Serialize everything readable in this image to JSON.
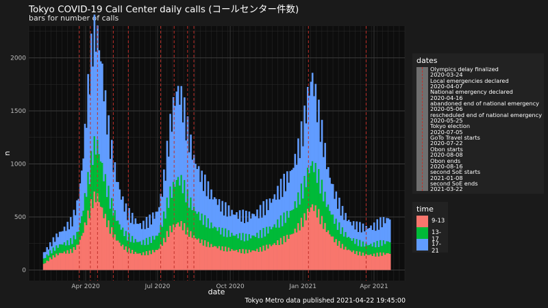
{
  "title": "Tokyo COVID-19 Call Center daily calls (コールセンター件数)",
  "subtitle": "bars for number of calls",
  "caption": "Tokyo Metro data published 2021-04-22 19:45:00",
  "colors": {
    "9-13": "#f8766d",
    "13-17": "#00ba38",
    "17-21": "#619cff",
    "event_line": "#c0302a",
    "background": "#1a1a1a",
    "grid": "#3a3a3a"
  },
  "chart_data": {
    "type": "bar",
    "stacked": true,
    "xlabel": "date",
    "ylabel": "n",
    "xlim": [
      "2020-01-20",
      "2021-05-10"
    ],
    "ylim": [
      -100,
      2300
    ],
    "x_ticks": [
      {
        "date": "2020-04-01",
        "label": "Apr 2020"
      },
      {
        "date": "2020-07-01",
        "label": "Jul 2020"
      },
      {
        "date": "2020-10-01",
        "label": "Oct 2020"
      },
      {
        "date": "2021-01-01",
        "label": "Jan 2021"
      },
      {
        "date": "2021-04-01",
        "label": "Apr 2021"
      }
    ],
    "y_ticks": [
      0,
      500,
      1000,
      1500,
      2000
    ],
    "grid": true,
    "legend_position": "right",
    "series": [
      {
        "name": "9-13",
        "x": [
          "2020-02-07",
          "2020-02-15",
          "2020-02-22",
          "2020-02-29",
          "2020-03-07",
          "2020-03-14",
          "2020-03-21",
          "2020-03-26",
          "2020-03-31",
          "2020-04-05",
          "2020-04-10",
          "2020-04-15",
          "2020-04-20",
          "2020-04-25",
          "2020-05-01",
          "2020-05-08",
          "2020-05-15",
          "2020-05-22",
          "2020-05-31",
          "2020-06-10",
          "2020-06-20",
          "2020-06-30",
          "2020-07-05",
          "2020-07-10",
          "2020-07-15",
          "2020-07-20",
          "2020-07-25",
          "2020-07-31",
          "2020-08-07",
          "2020-08-15",
          "2020-08-25",
          "2020-09-05",
          "2020-09-20",
          "2020-10-05",
          "2020-10-20",
          "2020-11-05",
          "2020-11-15",
          "2020-11-25",
          "2020-12-05",
          "2020-12-15",
          "2020-12-25",
          "2021-01-01",
          "2021-01-07",
          "2021-01-12",
          "2021-01-18",
          "2021-01-25",
          "2021-02-01",
          "2021-02-10",
          "2021-02-20",
          "2021-03-01",
          "2021-03-10",
          "2021-03-20",
          "2021-03-31",
          "2021-04-10",
          "2021-04-21"
        ],
        "values": [
          60,
          110,
          140,
          160,
          165,
          175,
          220,
          300,
          420,
          520,
          640,
          660,
          560,
          470,
          380,
          300,
          240,
          200,
          175,
          160,
          175,
          200,
          250,
          310,
          380,
          410,
          440,
          420,
          350,
          300,
          250,
          220,
          195,
          185,
          180,
          200,
          230,
          260,
          290,
          330,
          400,
          460,
          540,
          580,
          520,
          420,
          340,
          260,
          210,
          180,
          160,
          150,
          150,
          160,
          170
        ]
      },
      {
        "name": "13-17",
        "x": [
          "2020-02-07",
          "2020-02-15",
          "2020-02-22",
          "2020-02-29",
          "2020-03-07",
          "2020-03-14",
          "2020-03-21",
          "2020-03-26",
          "2020-03-31",
          "2020-04-05",
          "2020-04-10",
          "2020-04-15",
          "2020-04-20",
          "2020-04-25",
          "2020-05-01",
          "2020-05-08",
          "2020-05-15",
          "2020-05-22",
          "2020-05-31",
          "2020-06-10",
          "2020-06-20",
          "2020-06-30",
          "2020-07-05",
          "2020-07-10",
          "2020-07-15",
          "2020-07-20",
          "2020-07-25",
          "2020-07-31",
          "2020-08-07",
          "2020-08-15",
          "2020-08-25",
          "2020-09-05",
          "2020-09-20",
          "2020-10-05",
          "2020-10-20",
          "2020-11-05",
          "2020-11-15",
          "2020-11-25",
          "2020-12-05",
          "2020-12-15",
          "2020-12-25",
          "2021-01-01",
          "2021-01-07",
          "2021-01-12",
          "2021-01-18",
          "2021-01-25",
          "2021-02-01",
          "2021-02-10",
          "2021-02-20",
          "2021-03-01",
          "2021-03-10",
          "2021-03-20",
          "2021-03-31",
          "2021-04-10",
          "2021-04-21"
        ],
        "values": [
          50,
          60,
          70,
          80,
          80,
          90,
          110,
          170,
          260,
          340,
          450,
          460,
          400,
          330,
          260,
          200,
          160,
          130,
          120,
          110,
          120,
          140,
          190,
          260,
          330,
          380,
          420,
          390,
          310,
          250,
          210,
          180,
          150,
          140,
          135,
          150,
          160,
          180,
          200,
          220,
          260,
          300,
          360,
          380,
          340,
          280,
          220,
          170,
          130,
          110,
          100,
          95,
          100,
          110,
          120
        ]
      },
      {
        "name": "17-21",
        "x": [
          "2020-02-07",
          "2020-02-15",
          "2020-02-22",
          "2020-02-29",
          "2020-03-07",
          "2020-03-14",
          "2020-03-21",
          "2020-03-26",
          "2020-03-31",
          "2020-04-05",
          "2020-04-10",
          "2020-04-15",
          "2020-04-20",
          "2020-04-25",
          "2020-05-01",
          "2020-05-08",
          "2020-05-15",
          "2020-05-22",
          "2020-05-31",
          "2020-06-10",
          "2020-06-20",
          "2020-06-30",
          "2020-07-05",
          "2020-07-10",
          "2020-07-15",
          "2020-07-20",
          "2020-07-25",
          "2020-07-31",
          "2020-08-07",
          "2020-08-15",
          "2020-08-25",
          "2020-09-05",
          "2020-09-20",
          "2020-10-05",
          "2020-10-20",
          "2020-11-05",
          "2020-11-15",
          "2020-11-25",
          "2020-12-05",
          "2020-12-15",
          "2020-12-25",
          "2021-01-01",
          "2021-01-07",
          "2021-01-12",
          "2021-01-18",
          "2021-01-25",
          "2021-02-01",
          "2021-02-10",
          "2021-02-20",
          "2021-03-01",
          "2021-03-10",
          "2021-03-20",
          "2021-03-31",
          "2021-04-10",
          "2021-04-21"
        ],
        "values": [
          60,
          70,
          100,
          120,
          150,
          180,
          280,
          400,
          620,
          900,
          1000,
          980,
          900,
          700,
          520,
          400,
          300,
          230,
          200,
          170,
          200,
          240,
          300,
          420,
          600,
          760,
          850,
          750,
          600,
          450,
          350,
          280,
          220,
          200,
          200,
          220,
          250,
          290,
          330,
          370,
          460,
          560,
          720,
          780,
          600,
          460,
          320,
          230,
          170,
          150,
          150,
          160,
          180,
          210,
          240
        ]
      }
    ],
    "events": [
      {
        "date": "2020-03-24",
        "label": "Olympics delay finalized"
      },
      {
        "date": "2020-04-07",
        "label": "Local emergencies declared"
      },
      {
        "date": "2020-04-16",
        "label": "National emergency declared"
      },
      {
        "date": "2020-05-06",
        "label": "abandoned end of national emergency"
      },
      {
        "date": "2020-05-25",
        "label": "rescheduled end of national emergency"
      },
      {
        "date": "2020-07-05",
        "label": "Tokyo election"
      },
      {
        "date": "2020-07-22",
        "label": "GoTo Travel starts"
      },
      {
        "date": "2020-08-08",
        "label": "Obon starts"
      },
      {
        "date": "2020-08-16",
        "label": "Obon ends"
      },
      {
        "date": "2021-01-08",
        "label": "second SoE starts"
      },
      {
        "date": "2021-03-22",
        "label": "second SoE ends"
      }
    ]
  },
  "legends": {
    "dates_title": "dates",
    "dates_entries": [
      "Olympics delay finalized",
      "2020-03-24",
      "Local emergencies declared",
      "2020-04-07",
      "National emergency declared",
      "2020-04-16",
      "abandoned end of national emergency",
      "2020-05-06",
      "rescheduled end of national emergency",
      "2020-05-25",
      "Tokyo election",
      "2020-07-05",
      "GoTo Travel starts",
      "2020-07-22",
      "Obon starts",
      "2020-08-08",
      "Obon ends",
      "2020-08-16",
      "second SoE starts",
      "2021-01-08",
      "second SoE ends",
      "2021-03-22"
    ],
    "time_title": "time",
    "time_entries": [
      "9-13",
      "13-17",
      "17-21"
    ]
  }
}
